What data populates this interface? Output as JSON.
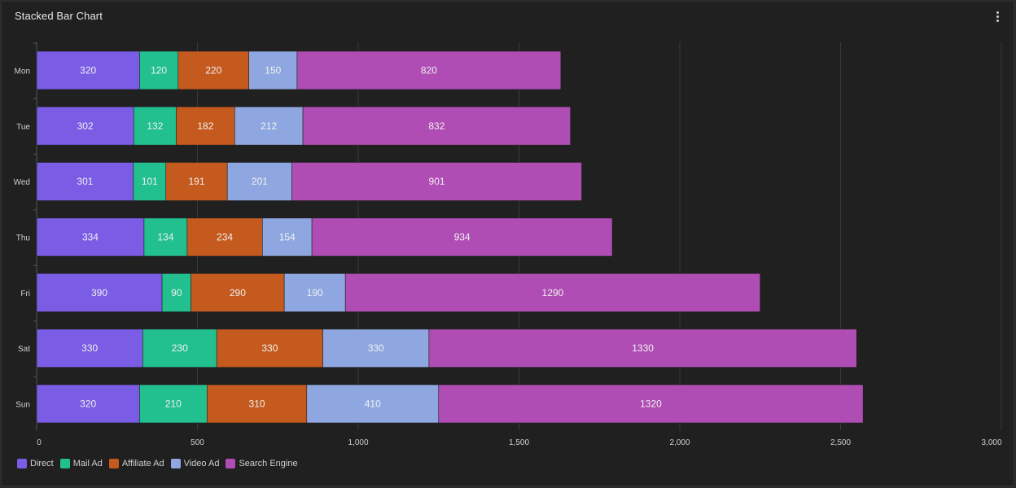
{
  "card": {
    "title": "Stacked Bar Chart"
  },
  "icons": {
    "menu": "vertical-dots-icon"
  },
  "chart_data": {
    "type": "bar",
    "orientation": "horizontal",
    "stacked": true,
    "title": "Stacked Bar Chart",
    "categories": [
      "Mon",
      "Tue",
      "Wed",
      "Thu",
      "Fri",
      "Sat",
      "Sun"
    ],
    "series": [
      {
        "name": "Direct",
        "color": "#7b5ce5",
        "values": [
          320,
          302,
          301,
          334,
          390,
          330,
          320
        ]
      },
      {
        "name": "Mail Ad",
        "color": "#22c08f",
        "values": [
          120,
          132,
          101,
          134,
          90,
          230,
          210
        ]
      },
      {
        "name": "Affiliate Ad",
        "color": "#c55a1f",
        "values": [
          220,
          182,
          191,
          234,
          290,
          330,
          310
        ]
      },
      {
        "name": "Video Ad",
        "color": "#8fa7e0",
        "values": [
          150,
          212,
          201,
          154,
          190,
          330,
          410
        ]
      },
      {
        "name": "Search Engine",
        "color": "#b04db5",
        "values": [
          820,
          832,
          901,
          934,
          1290,
          1330,
          1320
        ]
      }
    ],
    "xlim": [
      0,
      3000
    ],
    "x_ticks": [
      0,
      500,
      1000,
      1500,
      2000,
      2500,
      3000
    ],
    "x_tick_labels": [
      "0",
      "500",
      "1,000",
      "1,500",
      "2,000",
      "2,500",
      "3,000"
    ],
    "grid": true,
    "legend_position": "bottom-left",
    "data_labels": true
  }
}
